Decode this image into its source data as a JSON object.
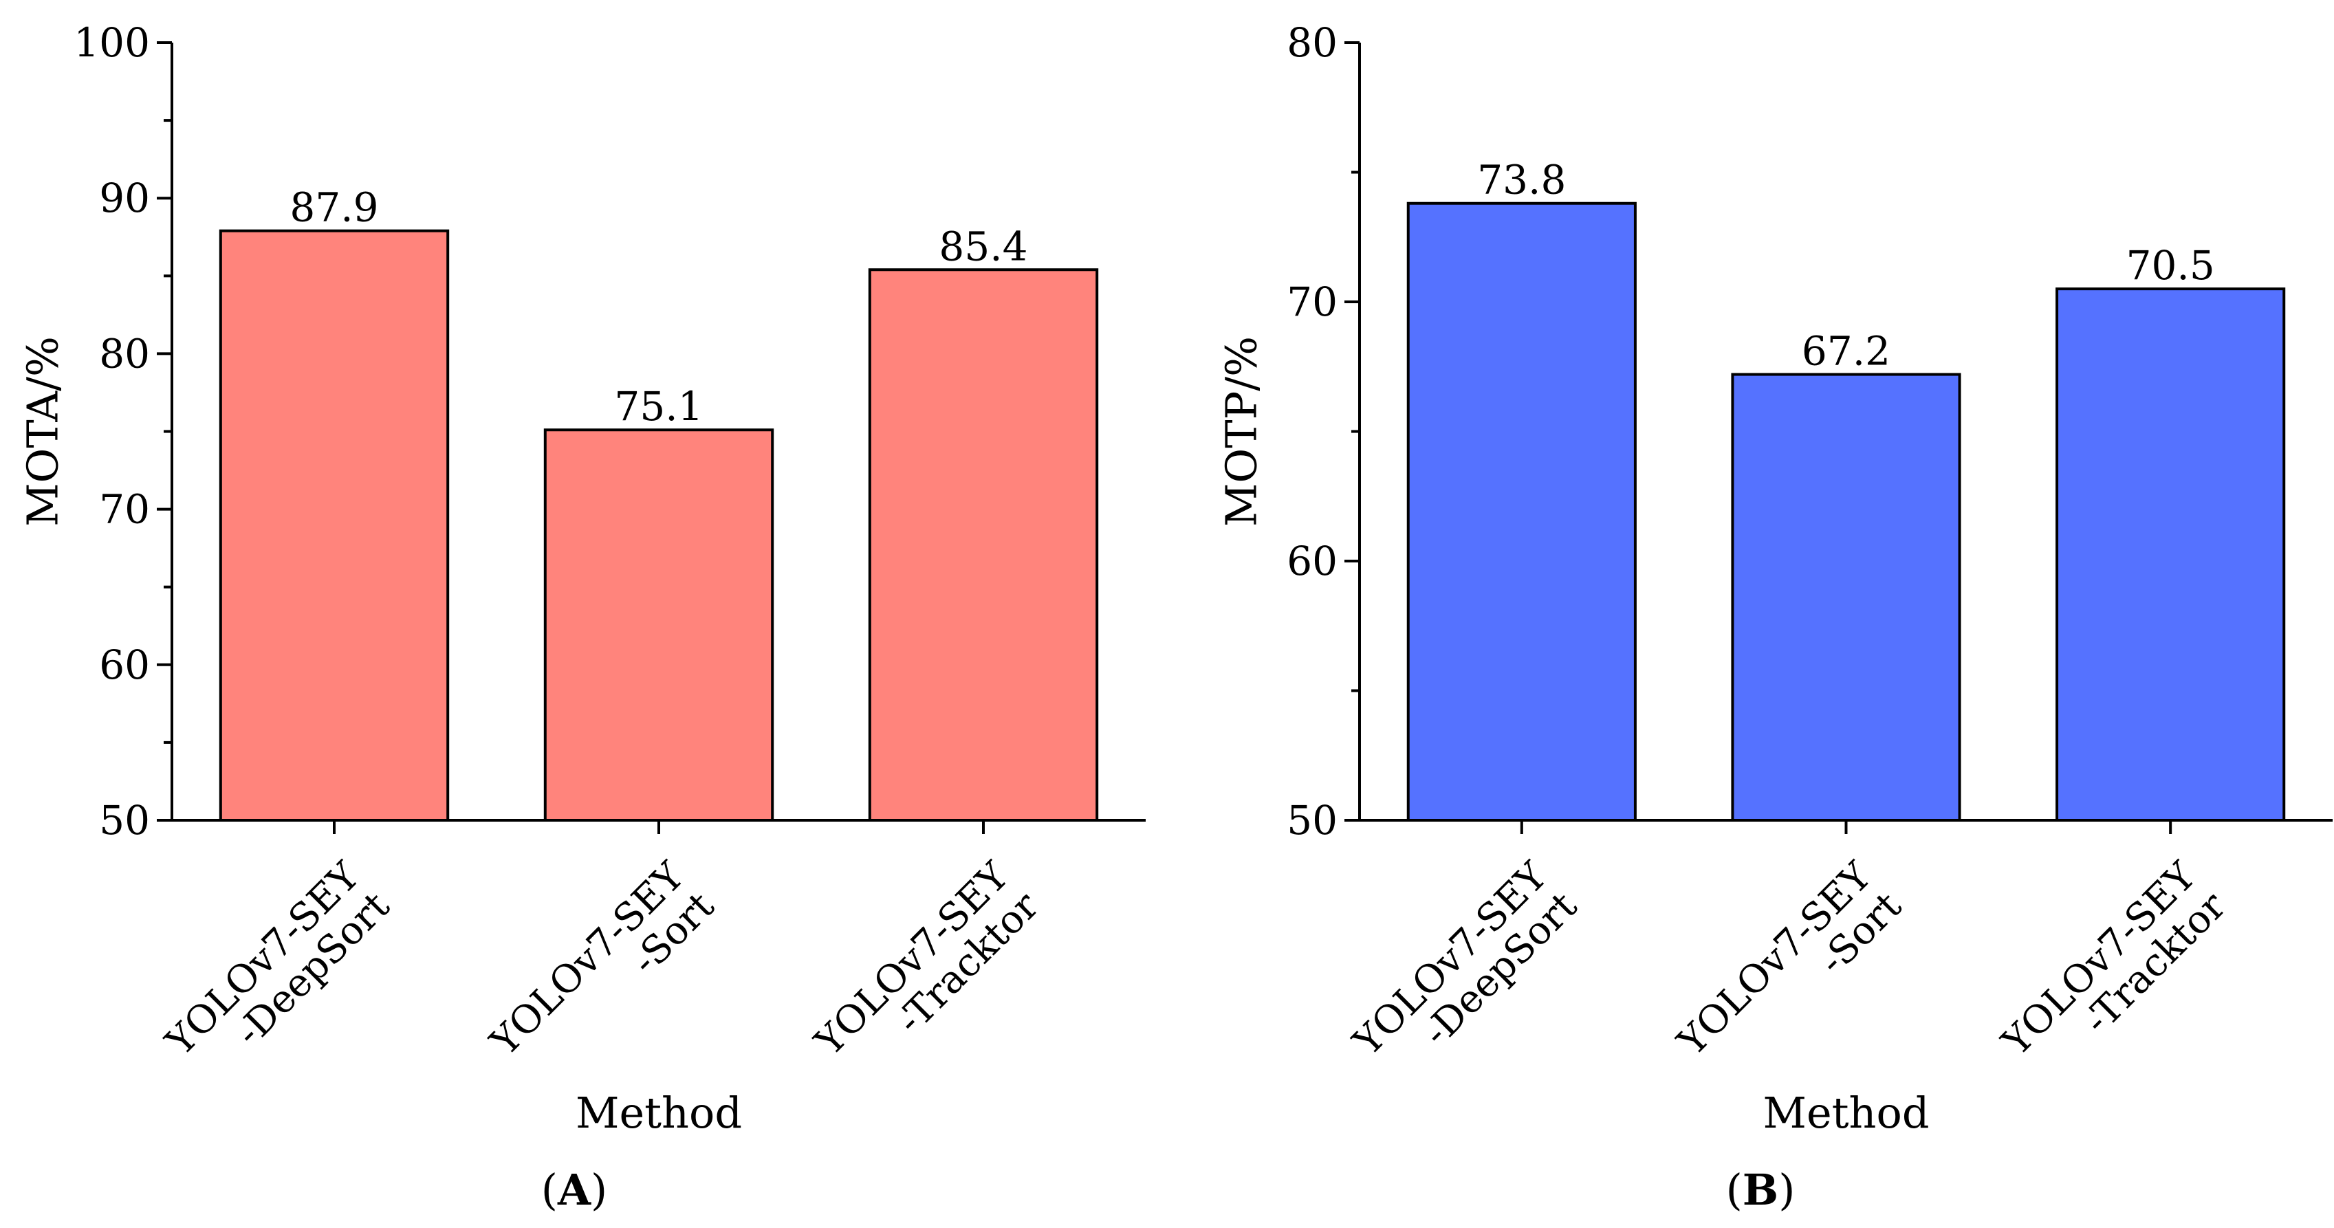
{
  "chart_data": [
    {
      "type": "bar",
      "panel_label": "A",
      "categories": [
        "YOLOv7-SEY\n-DeepSort",
        "YOLOv7-SEY\n-Sort",
        "YOLOv7-SEY\n-Tracktor"
      ],
      "values": [
        87.9,
        75.1,
        85.4
      ],
      "value_labels": [
        "87.9",
        "75.1",
        "85.4"
      ],
      "xlabel": "Method",
      "ylabel": "MOTA/%",
      "ylim": [
        50,
        100
      ],
      "yticks": [
        50,
        60,
        70,
        80,
        90,
        100
      ],
      "yminor_step": 5,
      "bar_color": "#FF847C",
      "grid": false
    },
    {
      "type": "bar",
      "panel_label": "B",
      "categories": [
        "YOLOv7-SEY\n-DeepSort",
        "YOLOv7-SEY\n-Sort",
        "YOLOv7-SEY\n-Tracktor"
      ],
      "values": [
        73.8,
        67.2,
        70.5
      ],
      "value_labels": [
        "73.8",
        "67.2",
        "70.5"
      ],
      "xlabel": "Method",
      "ylabel": "MOTP/%",
      "ylim": [
        50,
        80
      ],
      "yticks": [
        50,
        60,
        70,
        80
      ],
      "yminor_step": 5,
      "bar_color": "#5572FF",
      "grid": false
    }
  ]
}
